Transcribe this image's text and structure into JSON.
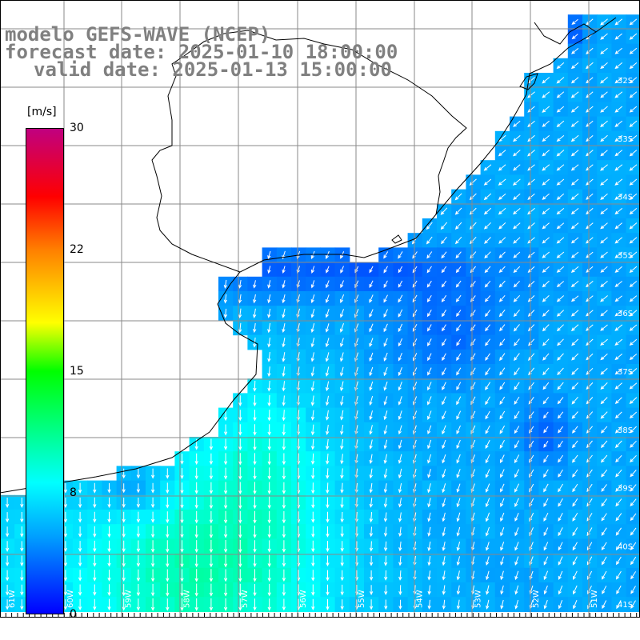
{
  "title": {
    "line1": "modelo GEFS-WAVE (NCEP)",
    "line2": "forecast date: 2025-01-10 18:00:00",
    "line3": "valid date: 2025-01-13 15:00:00"
  },
  "colorbar": {
    "unit": "[m/s]",
    "ticks": [
      "30",
      "22",
      "15",
      "8",
      "0"
    ],
    "tick_values": [
      30,
      22,
      15,
      8,
      0
    ],
    "range": [
      0,
      30
    ],
    "colors": [
      "#0000ff",
      "#00a0ff",
      "#00ffff",
      "#00ff00",
      "#ffff00",
      "#ff8000",
      "#ff0000",
      "#c00080"
    ]
  },
  "colors": {
    "land": "#ffffff",
    "grid": "#808080",
    "coastline": "#000000",
    "arrows": "#ffffff",
    "title_text": "#808080"
  },
  "lon_labels": [
    "61W",
    "60W",
    "59W",
    "58W",
    "57W",
    "56W",
    "55W",
    "54W",
    "53W",
    "52W",
    "51W"
  ],
  "lat_labels": [
    "32S",
    "33S",
    "34S",
    "35S",
    "36S",
    "37S",
    "38S",
    "39S",
    "40S",
    "41S"
  ]
}
